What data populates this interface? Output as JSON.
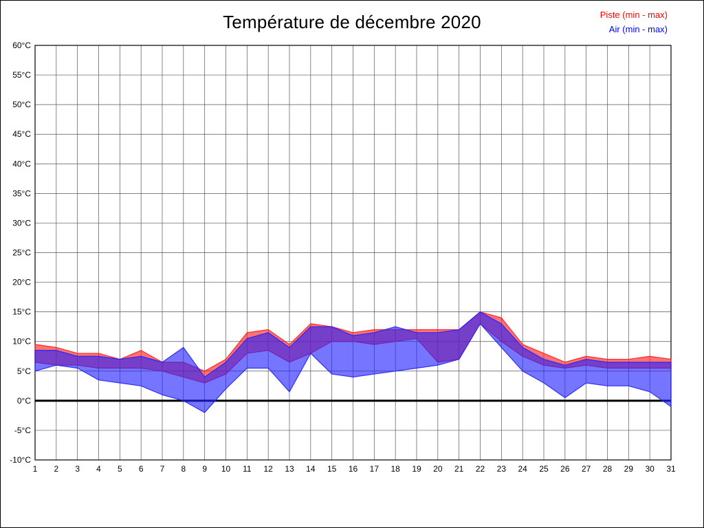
{
  "page": {
    "title": "Température de décembre 2020"
  },
  "legend": {
    "piste_label": "Piste (min - max)",
    "air_label": "Air (min - max)",
    "piste_color": "#ff0000",
    "air_color": "#0000ff"
  },
  "chart_data": {
    "type": "area",
    "title": "Température de décembre 2020",
    "xlabel": "",
    "ylabel": "",
    "ylim": [
      -10,
      60
    ],
    "ytick_step": 5,
    "zero_line_at": 0,
    "grid": true,
    "legend_position": "top-right",
    "x": [
      1,
      2,
      3,
      4,
      5,
      6,
      7,
      8,
      9,
      10,
      11,
      12,
      13,
      14,
      15,
      16,
      17,
      18,
      19,
      20,
      21,
      22,
      23,
      24,
      25,
      26,
      27,
      28,
      29,
      30,
      31
    ],
    "xtick_labels": [
      "1",
      "2",
      "3",
      "4",
      "5",
      "6",
      "7",
      "8",
      "9",
      "10",
      "11",
      "12",
      "13",
      "14",
      "15",
      "16",
      "17",
      "18",
      "19",
      "20",
      "21",
      "22",
      "23",
      "24",
      "25",
      "26",
      "27",
      "28",
      "29",
      "30",
      "31"
    ],
    "ytick_labels": [
      "60°C",
      "55°C",
      "50°C",
      "45°C",
      "40°C",
      "35°C",
      "30°C",
      "25°C",
      "20°C",
      "15°C",
      "10°C",
      "5°C",
      "0°C",
      "-5°C",
      "-10°C"
    ],
    "series": [
      {
        "name": "Piste (min - max)",
        "color": "#ff1c1c",
        "fill_opacity": 0.62,
        "min": [
          6.5,
          6.0,
          6.0,
          5.5,
          5.5,
          5.5,
          5.0,
          4.0,
          3.0,
          4.5,
          8.0,
          8.5,
          6.5,
          8.0,
          10.0,
          10.0,
          9.5,
          10.0,
          10.5,
          6.5,
          7.0,
          13.0,
          10.0,
          7.5,
          6.0,
          5.5,
          6.0,
          5.5,
          5.5,
          5.5,
          5.5
        ],
        "max": [
          9.5,
          9.0,
          8.0,
          8.0,
          7.0,
          8.5,
          6.5,
          6.5,
          5.0,
          7.0,
          11.5,
          12.0,
          9.5,
          13.0,
          12.5,
          11.5,
          12.0,
          12.0,
          12.0,
          12.0,
          12.0,
          15.0,
          14.0,
          9.5,
          8.0,
          6.5,
          7.5,
          7.0,
          7.0,
          7.5,
          7.0
        ]
      },
      {
        "name": "Air (min - max)",
        "color": "#2121ff",
        "fill_opacity": 0.62,
        "min": [
          5.0,
          6.0,
          5.5,
          3.5,
          3.0,
          2.5,
          1.0,
          0.0,
          -2.0,
          2.0,
          5.5,
          5.5,
          1.5,
          8.0,
          4.5,
          4.0,
          4.5,
          5.0,
          5.5,
          6.0,
          7.0,
          13.0,
          9.0,
          5.0,
          3.0,
          0.5,
          3.0,
          2.5,
          2.5,
          1.5,
          -1.0
        ],
        "max": [
          8.5,
          8.5,
          7.5,
          7.5,
          7.0,
          7.5,
          6.5,
          9.0,
          4.0,
          6.5,
          10.5,
          11.5,
          9.0,
          12.5,
          12.5,
          11.0,
          11.5,
          12.5,
          11.5,
          11.5,
          12.0,
          15.0,
          13.0,
          9.0,
          7.0,
          6.0,
          7.0,
          6.5,
          6.5,
          6.5,
          6.5
        ]
      }
    ]
  }
}
